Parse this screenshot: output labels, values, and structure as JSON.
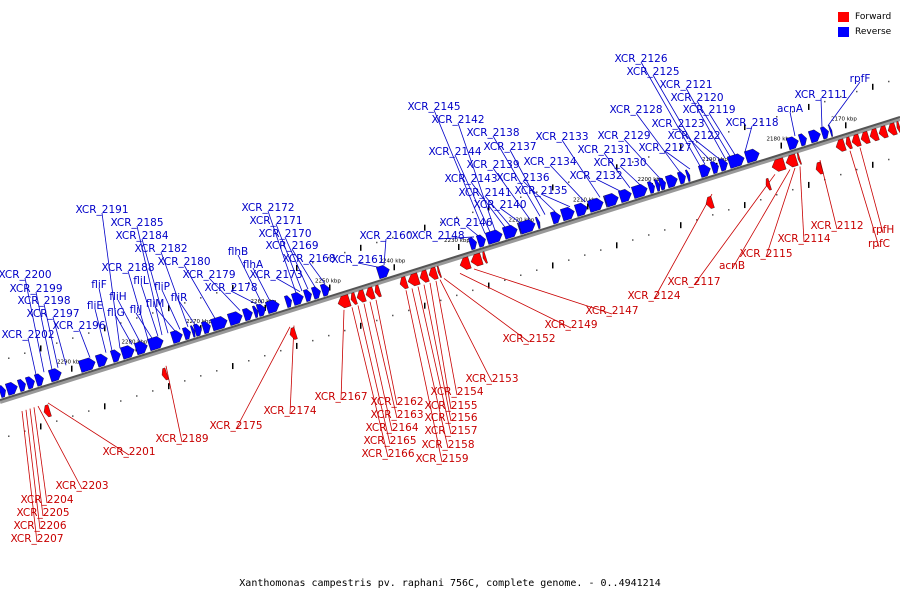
{
  "colors": {
    "forward": "#ff0000",
    "reverse": "#0000ff",
    "forward_text": "#c80000",
    "reverse_text": "#0000c8"
  },
  "legend": {
    "forward": "Forward",
    "reverse": "Reverse"
  },
  "caption": "Xanthomonas campestris pv. raphani 756C, complete genome. - 0..4941214",
  "scale": {
    "unit": "kbp",
    "ticks": [
      2170,
      2180,
      2190,
      2200,
      2210,
      2220,
      2230,
      2240,
      2250,
      2260,
      2270,
      2280,
      2290
    ]
  },
  "reverse_genes": [
    "XCR_2111",
    "rpfF",
    "acnA",
    "XCR_2118",
    "XCR_2119",
    "XCR_2120",
    "XCR_2121",
    "XCR_2122",
    "XCR_2123",
    "XCR_2125",
    "XCR_2126",
    "XCR_2127",
    "XCR_2128",
    "XCR_2129",
    "XCR_2130",
    "XCR_2131",
    "XCR_2132",
    "XCR_2133",
    "XCR_2134",
    "XCR_2135",
    "XCR_2136",
    "XCR_2137",
    "XCR_2138",
    "XCR_2139",
    "XCR_2140",
    "XCR_2141",
    "XCR_2142",
    "XCR_2143",
    "XCR_2144",
    "XCR_2145",
    "XCR_2146",
    "XCR_2148",
    "XCR_2160",
    "XCR_2161",
    "XCR_2168",
    "XCR_2169",
    "XCR_2170",
    "XCR_2171",
    "XCR_2172",
    "XCR_2173",
    "flhA",
    "flhB",
    "XCR_2178",
    "XCR_2179",
    "XCR_2180",
    "fliR",
    "XCR_2182",
    "fliP",
    "fliM",
    "XCR_2184",
    "XCR_2185",
    "fliL",
    "fliJ",
    "XCR_2188",
    "fliH",
    "fliG",
    "XCR_2191",
    "fliF",
    "fliE",
    "XCR_2196",
    "XCR_2197",
    "XCR_2198",
    "XCR_2199",
    "XCR_2200",
    "XCR_2202"
  ],
  "forward_genes": [
    "rpfH",
    "rpfC",
    "XCR_2112",
    "XCR_2114",
    "XCR_2115",
    "acnB",
    "XCR_2117",
    "XCR_2124",
    "XCR_2147",
    "XCR_2149",
    "XCR_2152",
    "XCR_2153",
    "XCR_2154",
    "XCR_2155",
    "XCR_2156",
    "XCR_2157",
    "XCR_2158",
    "XCR_2159",
    "XCR_2162",
    "XCR_2163",
    "XCR_2164",
    "XCR_2165",
    "XCR_2166",
    "XCR_2167",
    "XCR_2174",
    "XCR_2175",
    "XCR_2189",
    "XCR_2201",
    "XCR_2203",
    "XCR_2204",
    "XCR_2205",
    "XCR_2206",
    "XCR_2207"
  ]
}
